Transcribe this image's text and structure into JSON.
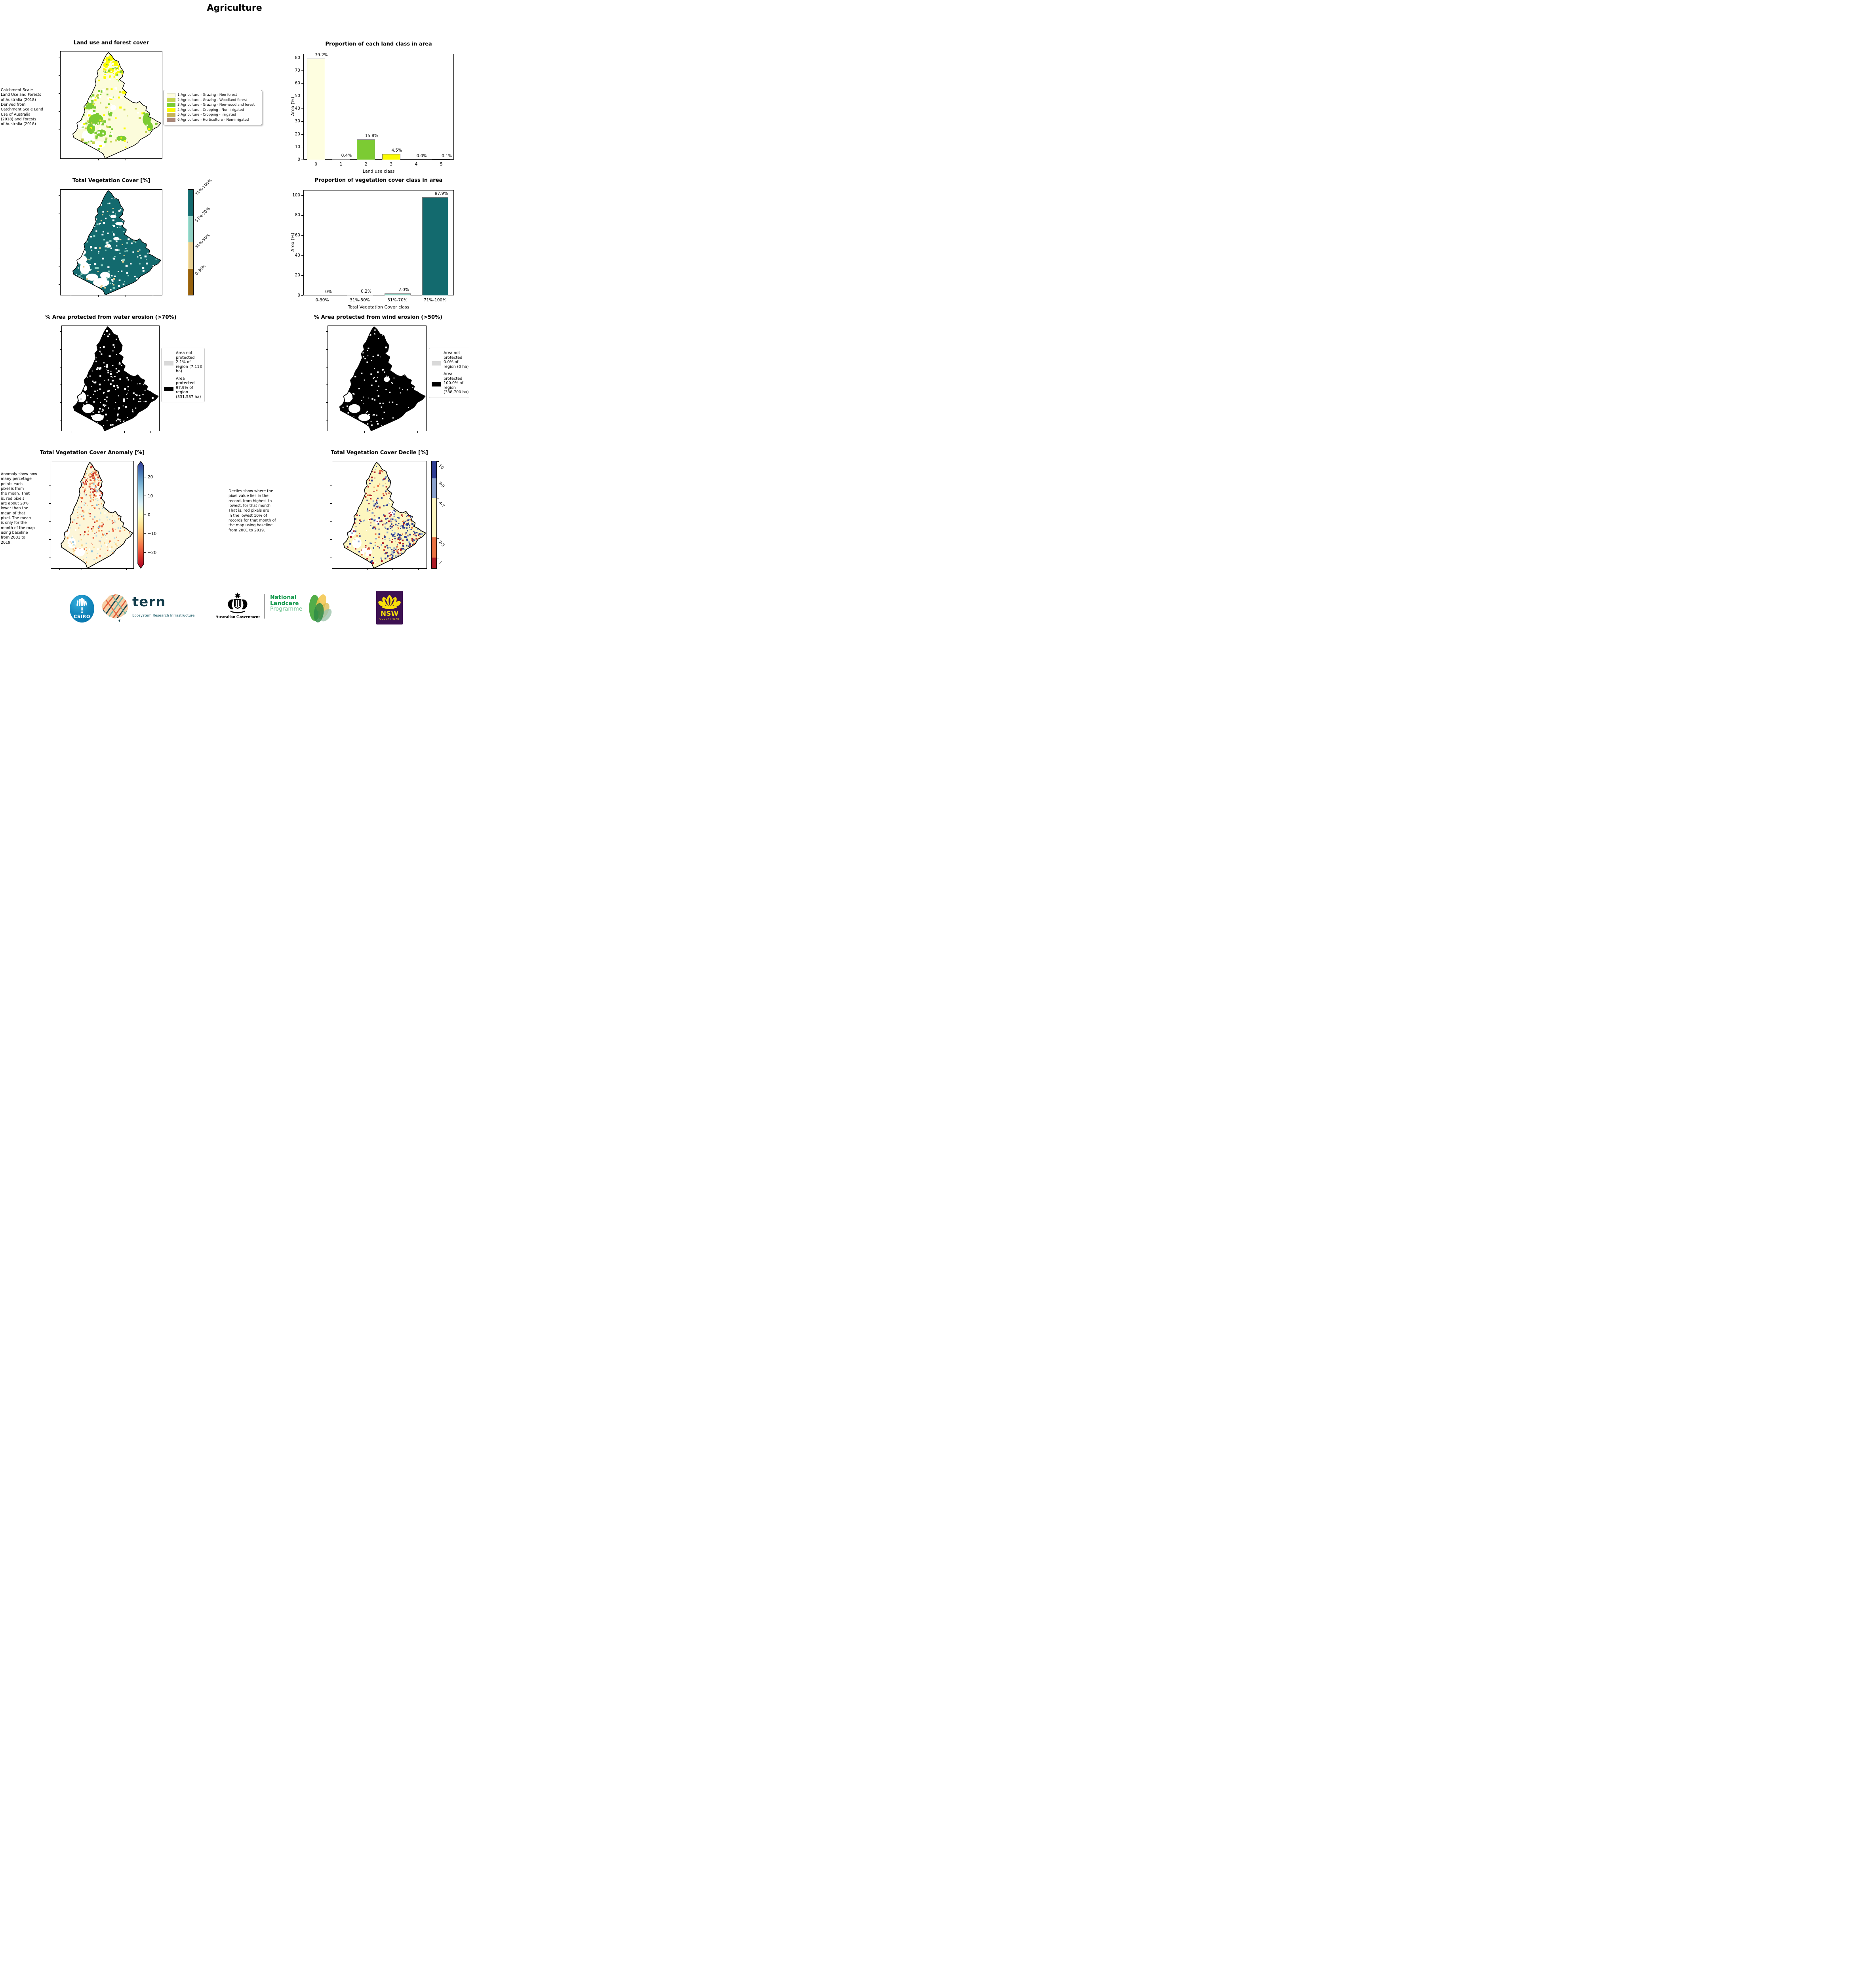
{
  "page": {
    "title": "Agriculture"
  },
  "panels": {
    "land_use_map": {
      "title": "Land use and forest cover",
      "side_text": " Catchment Scale\nLand Use and Forests\nof Australia (2018)\nDerived from\nCatchment Scale Land\nUse of Australia\n(2018) and Forests\nof Australia (2018)",
      "legend": [
        {
          "label": "1 Agriculture - Grazing - Non forest",
          "color": "#FEFEE0"
        },
        {
          "label": "2 Agriculture - Grazing - Woodland forest",
          "color": "#C6D34F"
        },
        {
          "label": "3 Agriculture - Grazing - Non-woodland forest",
          "color": "#7CCB33"
        },
        {
          "label": "4 Agriculture - Cropping - Non-irrigated",
          "color": "#FBFB00"
        },
        {
          "label": "5 Agriculture - Cropping - Irrigated",
          "color": "#C5B457"
        },
        {
          "label": "6 Agriculture - Horticulture - Non-irrigated",
          "color": "#AB8878"
        }
      ]
    },
    "veg_cover_map": {
      "title": "Total Vegetation Cover [%]",
      "colorbar": [
        {
          "label": "71%-100%",
          "color": "#136A6E"
        },
        {
          "label": "51%-70%",
          "color": "#8FD0C2"
        },
        {
          "label": "31%-50%",
          "color": "#E6CE90"
        },
        {
          "label": "0-30%",
          "color": "#96610D"
        }
      ]
    },
    "water_erosion": {
      "title": "% Area protected from water erosion (>70%)",
      "legend": [
        {
          "label": "Area not protected 2.1% of region (7,113 ha)",
          "color": "#D9D9D9"
        },
        {
          "label": "Area protected 97.9% of region (331,587 ha)",
          "color": "#000000"
        }
      ]
    },
    "wind_erosion": {
      "title": "% Area protected from wind erosion (>50%)",
      "legend": [
        {
          "label": "Area not protected 0.0% of region (0 ha)",
          "color": "#D9D9D9"
        },
        {
          "label": "Area protected 100.0% of region (338,700 ha)",
          "color": "#000000"
        }
      ]
    },
    "anomaly_map": {
      "title": "Total Vegetation Cover Anomaly [%]",
      "side_text": "Anomaly show how\nmany percetage\npoints each\npixel is from\nthe mean. That\nis, red pixels\nare about 20%\nlower than the\nmean of that\npixel. The mean\nis only for the\nmonth of the map\nusing baseline\nfrom 2001 to\n2019.",
      "colorbar_ticks": [
        "20",
        "10",
        "0",
        "−10",
        "−20"
      ]
    },
    "decile_map": {
      "title": "Total Vegetation Cover Decile [%]",
      "side_text": "Deciles show where the\npixel value lies in the\nrecord, from highest to\nlowest, for that month.\nThat is, red pixels are\nin the lowest 10% of\nrecords for that month of\nthe map using baseline\nfrom 2001 to 2019.",
      "colorbar": [
        {
          "label": "10",
          "color": "#2E3D94"
        },
        {
          "label": "8-9",
          "color": "#8CA3CE"
        },
        {
          "label": "4-7",
          "color": "#FDF6BF"
        },
        {
          "label": "2-3",
          "color": "#E97242"
        },
        {
          "label": "1",
          "color": "#AC1C27"
        }
      ]
    }
  },
  "chart_data": [
    {
      "type": "bar",
      "title": "Proportion of each land class in area",
      "categories": [
        "0",
        "1",
        "2",
        "3",
        "4",
        "5"
      ],
      "values": [
        79.2,
        0.4,
        15.8,
        4.5,
        0.0,
        0.1
      ],
      "value_labels": [
        "79.2%",
        "0.4%",
        "15.8%",
        "4.5%",
        "0.0%",
        "0.1%"
      ],
      "bar_colors": [
        "#FEFEE0",
        "#C6D34F",
        "#7CCB33",
        "#FBFB00",
        "#C5B457",
        "#AB8878"
      ],
      "xlabel": "Land use class",
      "ylabel": "Area (%)",
      "ylim": [
        0,
        83
      ],
      "yticks": [
        0,
        10,
        20,
        30,
        40,
        50,
        60,
        70,
        80
      ],
      "grid": false,
      "legend_position": "none"
    },
    {
      "type": "bar",
      "title": "Proportion of vegetation cover class in area",
      "categories": [
        "0-30%",
        "31%-50%",
        "51%-70%",
        "71%-100%"
      ],
      "values": [
        0,
        0.2,
        2.0,
        97.9
      ],
      "value_labels": [
        "0%",
        "0.2%",
        "2.0%",
        "97.9%"
      ],
      "bar_colors": [
        "#96610D",
        "#E6CE90",
        "#8FD0C2",
        "#136A6E"
      ],
      "xlabel": "Total Vegetation Cover class",
      "ylabel": "Area (%)",
      "ylim": [
        0,
        105
      ],
      "yticks": [
        0,
        20,
        40,
        60,
        80,
        100
      ],
      "grid": false,
      "legend_position": "none"
    }
  ],
  "footer": {
    "csiro": "CSIRO",
    "tern": "tern",
    "tern_sub": "Ecosystem Research Infrastructure",
    "aus_gov": "Australian Government",
    "landcare_line1": "National",
    "landcare_line2": "Landcare",
    "landcare_line3": "Programme",
    "nsw": "NSW",
    "nsw_sub": "GOVERNMENT"
  }
}
